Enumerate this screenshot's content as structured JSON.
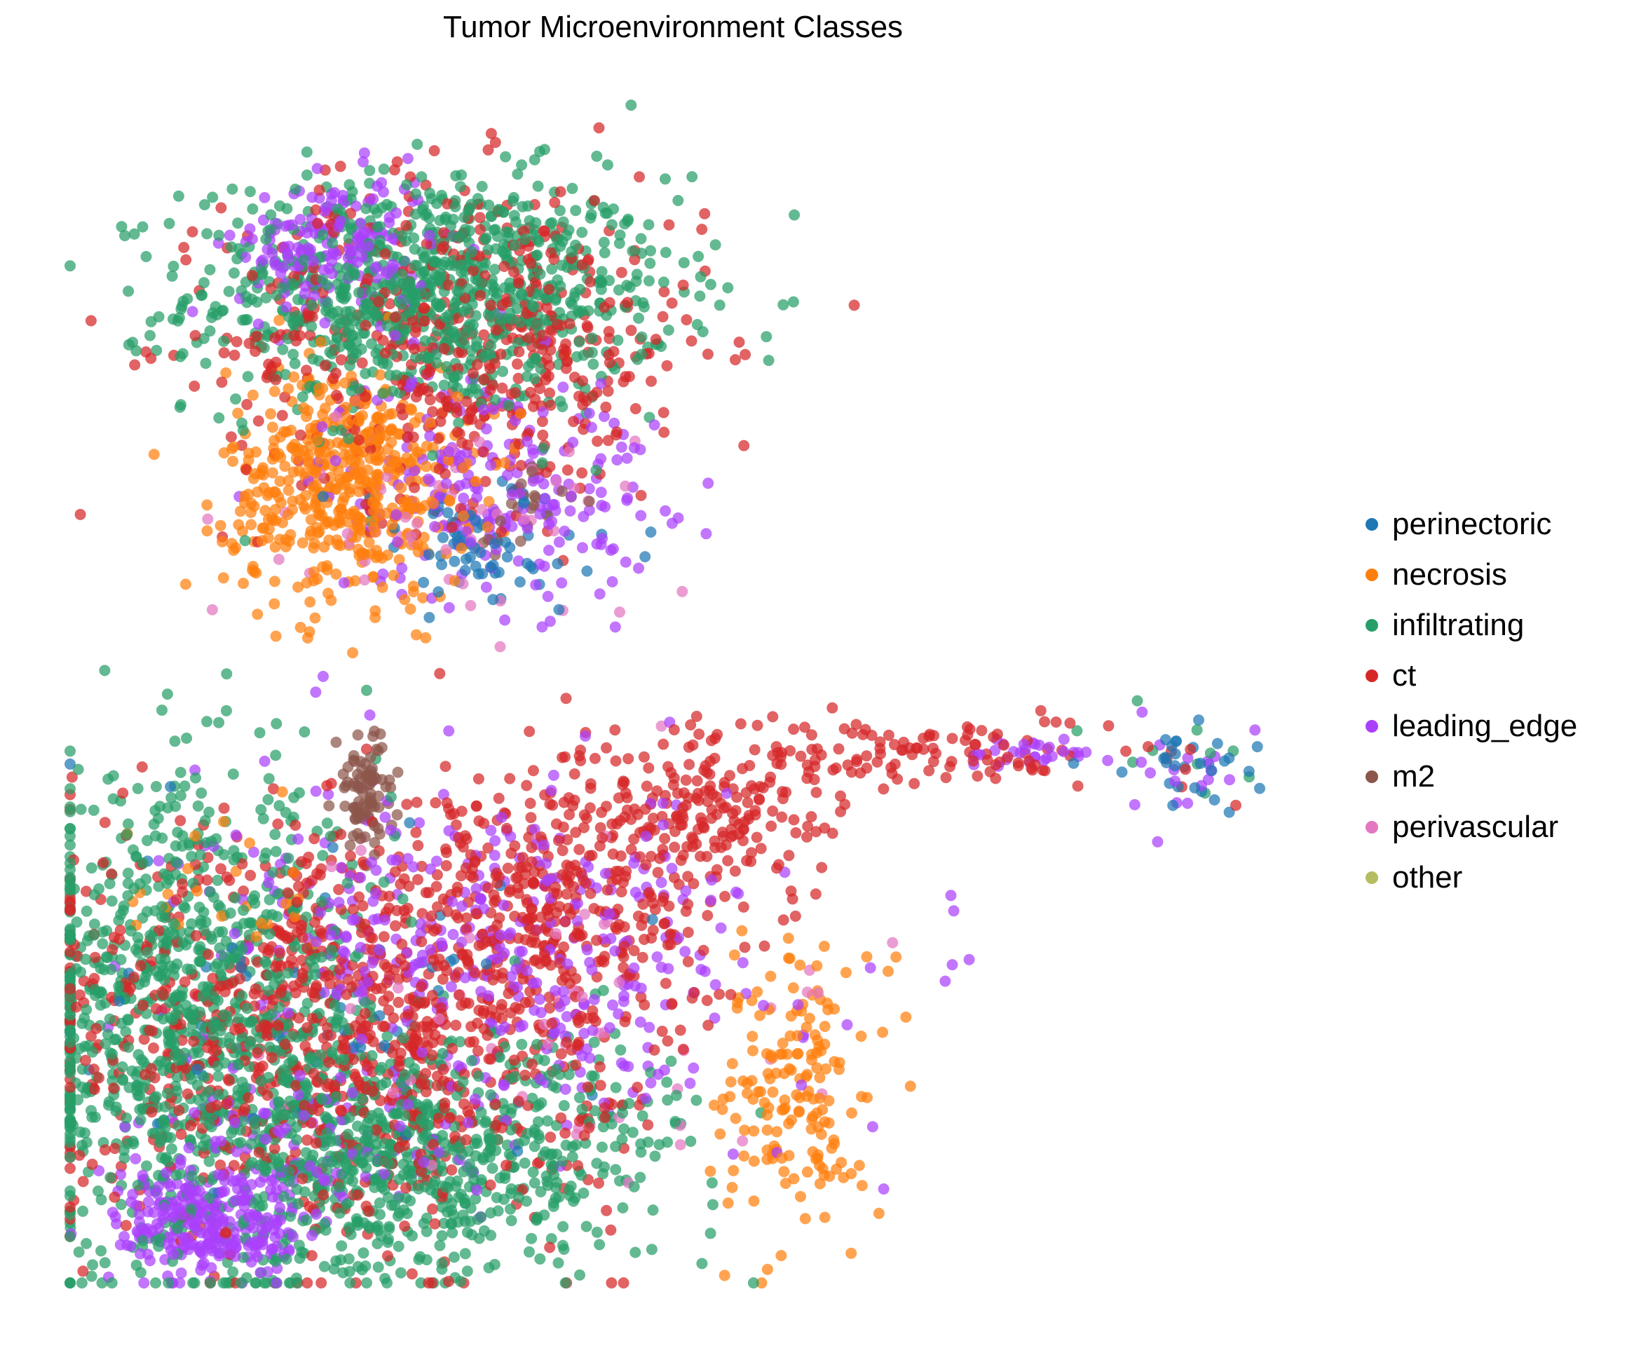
{
  "chart_data": {
    "type": "scatter",
    "title": "Tumor Microenvironment Classes",
    "xlabel": "",
    "ylabel": "",
    "axes_visible": false,
    "grid": false,
    "legend_position": "right",
    "series": [
      {
        "name": "perinectoric",
        "color": "#1f77b4"
      },
      {
        "name": "necrosis",
        "color": "#ff7f0e"
      },
      {
        "name": "infiltrating",
        "color": "#279e68"
      },
      {
        "name": "ct",
        "color": "#d62728"
      },
      {
        "name": "leading_edge",
        "color": "#aa40fc"
      },
      {
        "name": "m2",
        "color": "#8c564b"
      },
      {
        "name": "perivascular",
        "color": "#e377c2"
      },
      {
        "name": "other",
        "color": "#b5bd61"
      }
    ],
    "clusters": [
      {
        "series": "infiltrating",
        "x": 0.3,
        "y": 0.84,
        "sx": 0.1,
        "sy": 0.05,
        "n": 900
      },
      {
        "series": "ct",
        "x": 0.33,
        "y": 0.8,
        "sx": 0.1,
        "sy": 0.07,
        "n": 550
      },
      {
        "series": "leading_edge",
        "x": 0.22,
        "y": 0.88,
        "sx": 0.04,
        "sy": 0.03,
        "n": 180
      },
      {
        "series": "leading_edge",
        "x": 0.35,
        "y": 0.68,
        "sx": 0.07,
        "sy": 0.05,
        "n": 220
      },
      {
        "series": "necrosis",
        "x": 0.23,
        "y": 0.68,
        "sx": 0.05,
        "sy": 0.05,
        "n": 500
      },
      {
        "series": "perinectoric",
        "x": 0.34,
        "y": 0.62,
        "sx": 0.06,
        "sy": 0.03,
        "n": 70
      },
      {
        "series": "perivascular",
        "x": 0.33,
        "y": 0.64,
        "sx": 0.07,
        "sy": 0.04,
        "n": 50
      },
      {
        "series": "m2",
        "x": 0.37,
        "y": 0.66,
        "sx": 0.02,
        "sy": 0.02,
        "n": 25
      },
      {
        "series": "m2",
        "x": 0.245,
        "y": 0.415,
        "sx": 0.012,
        "sy": 0.025,
        "n": 90
      },
      {
        "series": "infiltrating",
        "x": 0.1,
        "y": 0.22,
        "sx": 0.08,
        "sy": 0.1,
        "n": 1000
      },
      {
        "series": "infiltrating",
        "x": 0.26,
        "y": 0.1,
        "sx": 0.07,
        "sy": 0.05,
        "n": 500
      },
      {
        "series": "infiltrating",
        "x": 0.38,
        "y": 0.12,
        "sx": 0.08,
        "sy": 0.05,
        "n": 220
      },
      {
        "series": "ct",
        "x": 0.22,
        "y": 0.22,
        "sx": 0.12,
        "sy": 0.09,
        "n": 1000
      },
      {
        "series": "ct",
        "x": 0.4,
        "y": 0.32,
        "sx": 0.06,
        "sy": 0.06,
        "n": 300
      },
      {
        "series": "ct",
        "x": 0.53,
        "y": 0.4,
        "sx": 0.06,
        "sy": 0.04,
        "n": 220
      },
      {
        "series": "ct",
        "x": 0.72,
        "y": 0.45,
        "sx": 0.06,
        "sy": 0.015,
        "n": 90
      },
      {
        "series": "leading_edge",
        "x": 0.12,
        "y": 0.05,
        "sx": 0.04,
        "sy": 0.025,
        "n": 280
      },
      {
        "series": "leading_edge",
        "x": 0.35,
        "y": 0.28,
        "sx": 0.12,
        "sy": 0.07,
        "n": 400
      },
      {
        "series": "leading_edge",
        "x": 0.2,
        "y": 0.11,
        "sx": 0.07,
        "sy": 0.03,
        "n": 100
      },
      {
        "series": "leading_edge",
        "x": 0.8,
        "y": 0.45,
        "sx": 0.03,
        "sy": 0.008,
        "n": 30
      },
      {
        "series": "necrosis",
        "x": 0.6,
        "y": 0.16,
        "sx": 0.03,
        "sy": 0.06,
        "n": 170
      },
      {
        "series": "necrosis",
        "x": 0.14,
        "y": 0.35,
        "sx": 0.05,
        "sy": 0.03,
        "n": 25
      },
      {
        "series": "perinectoric",
        "x": 0.2,
        "y": 0.25,
        "sx": 0.1,
        "sy": 0.1,
        "n": 50
      },
      {
        "series": "perinectoric",
        "x": 0.93,
        "y": 0.44,
        "sx": 0.03,
        "sy": 0.02,
        "n": 30
      },
      {
        "series": "leading_edge",
        "x": 0.93,
        "y": 0.44,
        "sx": 0.03,
        "sy": 0.02,
        "n": 18
      },
      {
        "series": "ct",
        "x": 0.93,
        "y": 0.45,
        "sx": 0.03,
        "sy": 0.02,
        "n": 8
      },
      {
        "series": "infiltrating",
        "x": 0.92,
        "y": 0.45,
        "sx": 0.03,
        "sy": 0.02,
        "n": 10
      },
      {
        "series": "perivascular",
        "x": 0.38,
        "y": 0.22,
        "sx": 0.12,
        "sy": 0.08,
        "n": 60
      }
    ]
  }
}
